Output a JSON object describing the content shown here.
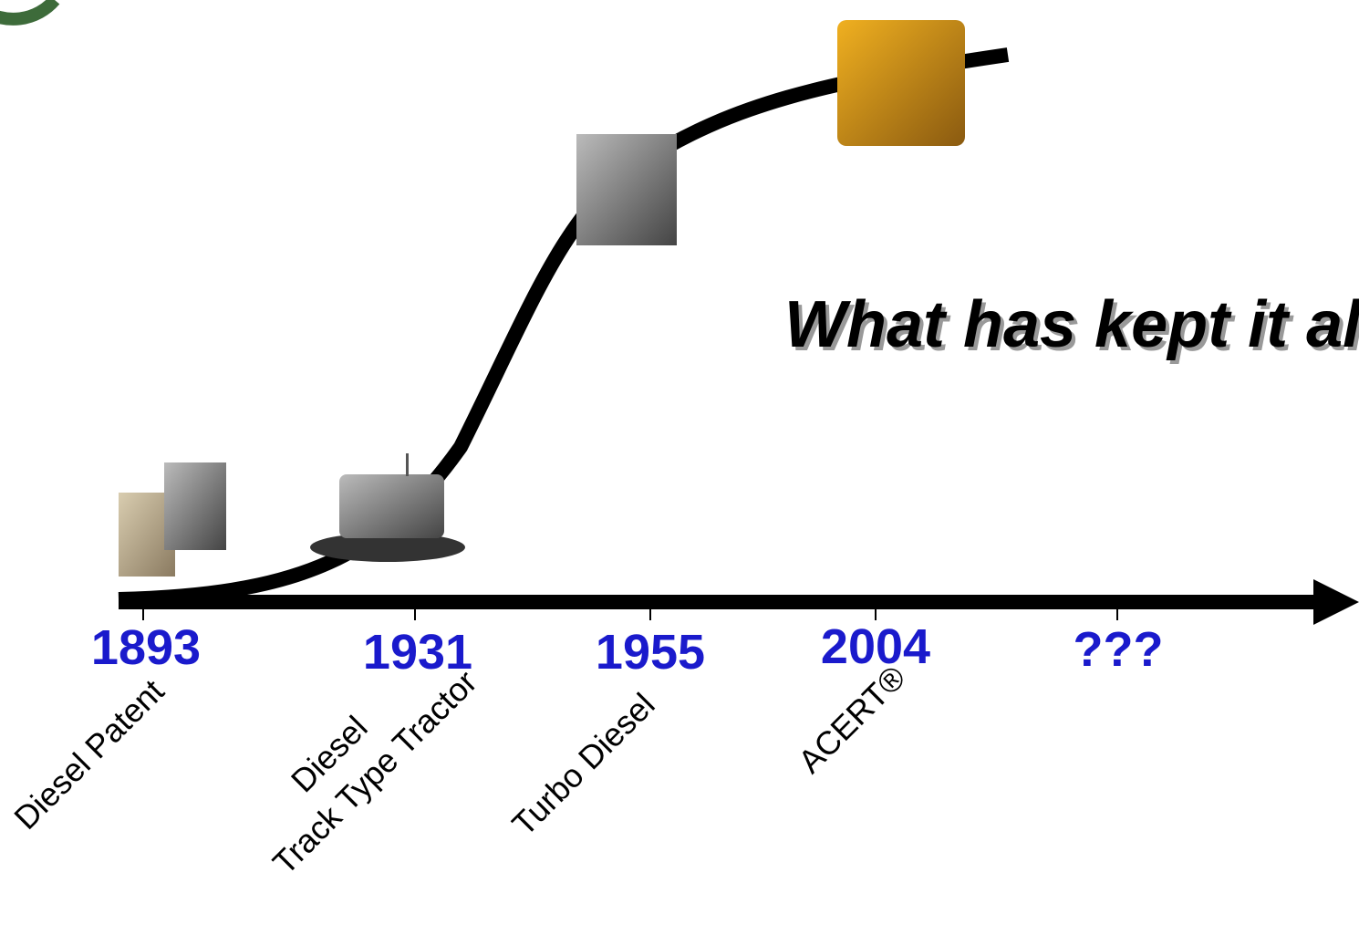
{
  "title": "What has kept it ali",
  "milestones": [
    {
      "year": "1893",
      "label": [
        "Diesel Patent"
      ]
    },
    {
      "year": "1931",
      "label": [
        "Diesel",
        "Track Type Tractor"
      ]
    },
    {
      "year": "1955",
      "label": [
        "Turbo Diesel"
      ]
    },
    {
      "year": "2004",
      "label": [
        "ACERT®"
      ]
    },
    {
      "year": "???",
      "label": []
    }
  ]
}
